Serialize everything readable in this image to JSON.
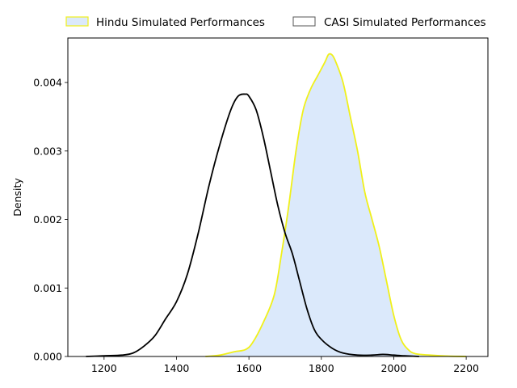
{
  "chart_data": {
    "type": "area",
    "xlabel": "",
    "ylabel": "Density",
    "xlim": [
      1100,
      2260
    ],
    "ylim": [
      0,
      0.00465
    ],
    "xticks": [
      1200,
      1400,
      1600,
      1800,
      2000,
      2200
    ],
    "yticks": [
      0,
      0.001,
      0.002,
      0.003,
      0.004
    ],
    "xtick_labels": [
      "1200",
      "1400",
      "1600",
      "1800",
      "2000",
      "2200"
    ],
    "ytick_labels": [
      "0.000",
      "0.001",
      "0.002",
      "0.003",
      "0.004"
    ],
    "grid": false,
    "legend": {
      "placement": "top-center-outside",
      "entries": [
        "Hindu Simulated Performances",
        "CASI Simulated Performances"
      ]
    },
    "series": [
      {
        "name": "Hindu Simulated Performances",
        "fill": "#dbe9fb",
        "stroke": "#f0f01a",
        "filled": true,
        "x": [
          1480,
          1520,
          1560,
          1590,
          1610,
          1640,
          1670,
          1690,
          1710,
          1730,
          1750,
          1770,
          1790,
          1810,
          1820,
          1830,
          1840,
          1860,
          1880,
          1900,
          1920,
          1940,
          1960,
          1980,
          2000,
          2020,
          2040,
          2060,
          2100,
          2150,
          2200
        ],
        "y": [
          0.0,
          2e-05,
          7e-05,
          0.0001,
          0.0002,
          0.0005,
          0.0009,
          0.0015,
          0.0022,
          0.003,
          0.0036,
          0.0039,
          0.0041,
          0.0043,
          0.00441,
          0.0044,
          0.0043,
          0.004,
          0.0035,
          0.003,
          0.0024,
          0.002,
          0.0016,
          0.0011,
          0.0006,
          0.00025,
          0.0001,
          4e-05,
          2e-05,
          5e-06,
          0.0
        ]
      },
      {
        "name": "CASI Simulated Performances",
        "fill": "none",
        "stroke": "#000000",
        "filled": false,
        "x": [
          1150,
          1200,
          1250,
          1280,
          1310,
          1340,
          1370,
          1400,
          1430,
          1460,
          1490,
          1520,
          1550,
          1570,
          1590,
          1600,
          1620,
          1640,
          1660,
          1680,
          1700,
          1720,
          1740,
          1760,
          1780,
          1800,
          1830,
          1860,
          1900,
          1940,
          1970,
          2000,
          2030,
          2070
        ],
        "y": [
          0.0,
          1e-05,
          2e-05,
          5e-05,
          0.00015,
          0.0003,
          0.00055,
          0.0008,
          0.0012,
          0.0018,
          0.0025,
          0.0031,
          0.0036,
          0.0038,
          0.00383,
          0.0038,
          0.0036,
          0.0032,
          0.0027,
          0.0022,
          0.0018,
          0.0015,
          0.0011,
          0.0007,
          0.0004,
          0.00025,
          0.00012,
          5e-05,
          2e-05,
          2e-05,
          3e-05,
          2e-05,
          1e-05,
          0.0
        ]
      }
    ]
  }
}
